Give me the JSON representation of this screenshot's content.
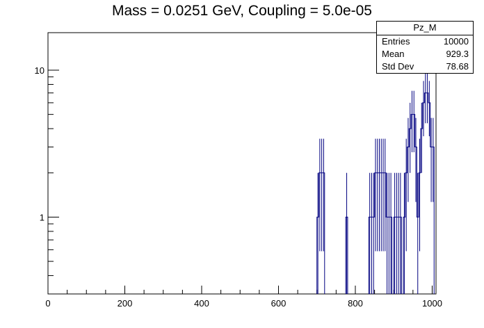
{
  "chart_data": {
    "type": "histogram",
    "title": "Mass = 0.0251 GeV, Coupling = 5.0e-05",
    "xlabel": "",
    "ylabel": "",
    "xlim": [
      0,
      1010
    ],
    "ylim": [
      0.3,
      18
    ],
    "yscale": "log",
    "x_ticks": [
      "0",
      "200",
      "400",
      "600",
      "800",
      "1000"
    ],
    "x_tick_values": [
      0,
      200,
      400,
      600,
      800,
      1000
    ],
    "y_ticks": [
      "1",
      "10"
    ],
    "y_tick_values": [
      1,
      10
    ],
    "line_color": "#000080",
    "bin_width": 5,
    "bins": [
      {
        "x": 702.5,
        "y": 1
      },
      {
        "x": 707.5,
        "y": 2
      },
      {
        "x": 712.5,
        "y": 2
      },
      {
        "x": 717.5,
        "y": 2
      },
      {
        "x": 777.5,
        "y": 1
      },
      {
        "x": 837.5,
        "y": 1
      },
      {
        "x": 842.5,
        "y": 1
      },
      {
        "x": 847.5,
        "y": 1
      },
      {
        "x": 852.5,
        "y": 2
      },
      {
        "x": 857.5,
        "y": 2
      },
      {
        "x": 862.5,
        "y": 2
      },
      {
        "x": 867.5,
        "y": 2
      },
      {
        "x": 872.5,
        "y": 2
      },
      {
        "x": 877.5,
        "y": 2
      },
      {
        "x": 882.5,
        "y": 1
      },
      {
        "x": 887.5,
        "y": 1
      },
      {
        "x": 892.5,
        "y": 1
      },
      {
        "x": 902.5,
        "y": 1
      },
      {
        "x": 907.5,
        "y": 1
      },
      {
        "x": 912.5,
        "y": 1
      },
      {
        "x": 917.5,
        "y": 1
      },
      {
        "x": 927.5,
        "y": 1
      },
      {
        "x": 932.5,
        "y": 2
      },
      {
        "x": 937.5,
        "y": 3
      },
      {
        "x": 942.5,
        "y": 4
      },
      {
        "x": 947.5,
        "y": 5
      },
      {
        "x": 952.5,
        "y": 5
      },
      {
        "x": 957.5,
        "y": 3
      },
      {
        "x": 962.5,
        "y": 1
      },
      {
        "x": 967.5,
        "y": 2
      },
      {
        "x": 972.5,
        "y": 4
      },
      {
        "x": 977.5,
        "y": 6
      },
      {
        "x": 982.5,
        "y": 7
      },
      {
        "x": 987.5,
        "y": 7
      },
      {
        "x": 992.5,
        "y": 6
      },
      {
        "x": 997.5,
        "y": 3
      },
      {
        "x": 1002.5,
        "y": 3
      }
    ]
  },
  "stats_box": {
    "name": "Pz_M",
    "entries_label": "Entries",
    "entries_value": "10000",
    "mean_label": "Mean",
    "mean_value": "929.3",
    "std_label": "Std Dev",
    "std_value": "78.68"
  }
}
